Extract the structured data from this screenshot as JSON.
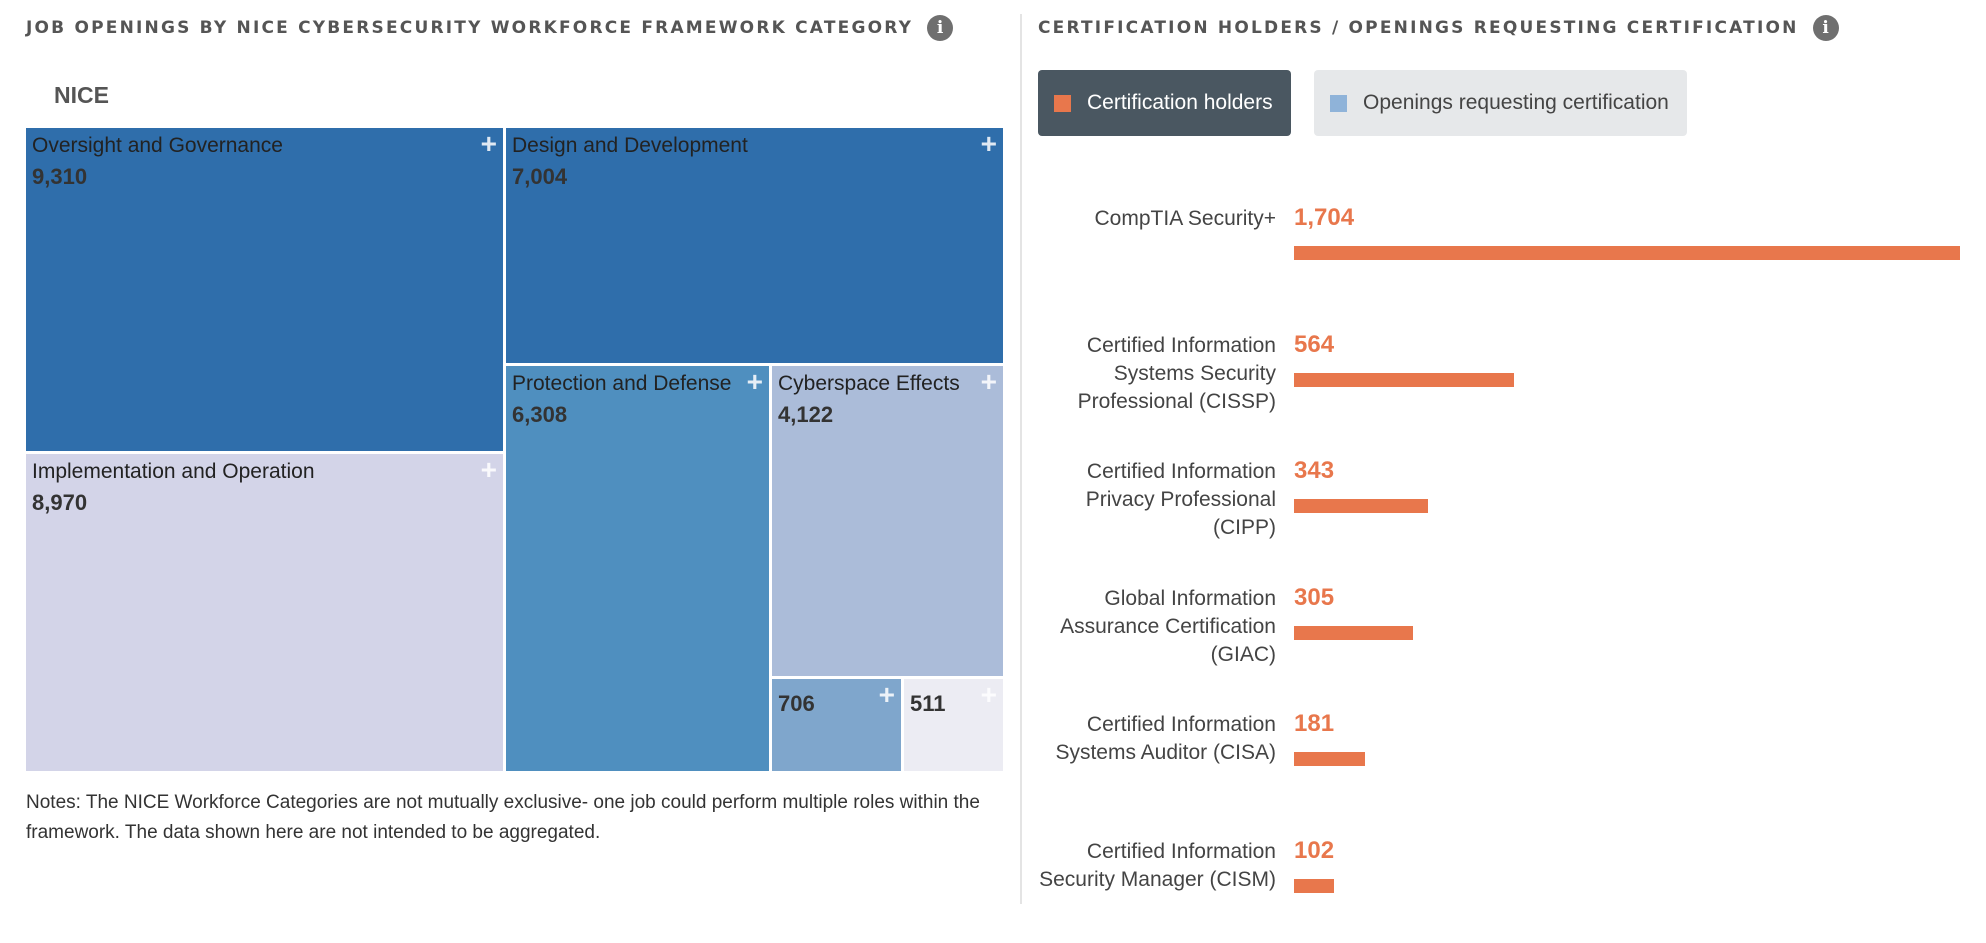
{
  "left_panel": {
    "title": "JOB OPENINGS BY NICE CYBERSECURITY WORKFORCE FRAMEWORK CATEGORY",
    "info_icon": "info-icon",
    "treemap_header": "NICE",
    "notes": "Notes: The NICE Workforce Categories are not mutually exclusive- one job could perform multiple roles within the framework. The data shown here are not intended to be aggregated."
  },
  "right_panel": {
    "title": "CERTIFICATION HOLDERS / OPENINGS REQUESTING CERTIFICATION",
    "info_icon": "info-icon",
    "legend": {
      "holders_label": "Certification holders",
      "openings_label": "Openings requesting certification",
      "holders_color": "#e8774c",
      "openings_color": "#8fb3d9",
      "active": "holders"
    }
  },
  "chart_data": [
    {
      "type": "treemap",
      "title": "NICE",
      "expand_icon": "plus-icon",
      "items": [
        {
          "name": "Oversight and Governance",
          "value": 9310,
          "label": "9,310",
          "color": "#2f6eab"
        },
        {
          "name": "Implementation and Operation",
          "value": 8970,
          "label": "8,970",
          "color": "#d3d4e8"
        },
        {
          "name": "Design and Development",
          "value": 7004,
          "label": "7,004",
          "color": "#2f6eab"
        },
        {
          "name": "Protection and Defense",
          "value": 6308,
          "label": "6,308",
          "color": "#4f8fbf"
        },
        {
          "name": "Cyberspace Effects",
          "value": 4122,
          "label": "4,122",
          "color": "#abbcd9"
        },
        {
          "name": "",
          "value": 706,
          "label": "706",
          "color": "#7fa6cc"
        },
        {
          "name": "",
          "value": 511,
          "label": "511",
          "color": "#ececf3"
        }
      ]
    },
    {
      "type": "bar",
      "orientation": "horizontal",
      "series": [
        {
          "name": "Certification holders",
          "color": "#e8774c"
        }
      ],
      "categories": [
        "CompTIA Security+",
        "Certified Information Systems Security Professional (CISSP)",
        "Certified Information Privacy Professional (CIPP)",
        "Global Information Assurance Certification (GIAC)",
        "Certified Information Systems Auditor (CISA)",
        "Certified Information Security Manager (CISM)"
      ],
      "values": [
        1704,
        564,
        343,
        305,
        181,
        102
      ],
      "value_labels": [
        "1,704",
        "564",
        "343",
        "305",
        "181",
        "102"
      ]
    }
  ]
}
